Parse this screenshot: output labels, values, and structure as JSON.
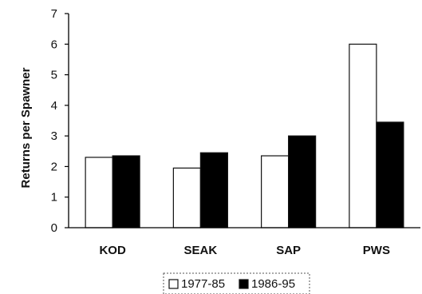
{
  "chart_data": {
    "type": "bar",
    "title": "",
    "xlabel": "",
    "ylabel": "Returns per Spawner",
    "categories": [
      "KOD",
      "SEAK",
      "SAP",
      "PWS"
    ],
    "ylim": [
      0,
      7
    ],
    "yticks": [
      "0",
      "1",
      "2",
      "3",
      "4",
      "5",
      "6",
      "7"
    ],
    "grid": false,
    "legend_position": "bottom-center",
    "series": [
      {
        "name": "1977-85",
        "values": [
          2.3,
          1.95,
          2.35,
          6.0
        ],
        "color": "#ffffff"
      },
      {
        "name": "1986-95",
        "values": [
          2.35,
          2.45,
          3.0,
          3.45
        ],
        "color": "#000000"
      }
    ]
  }
}
